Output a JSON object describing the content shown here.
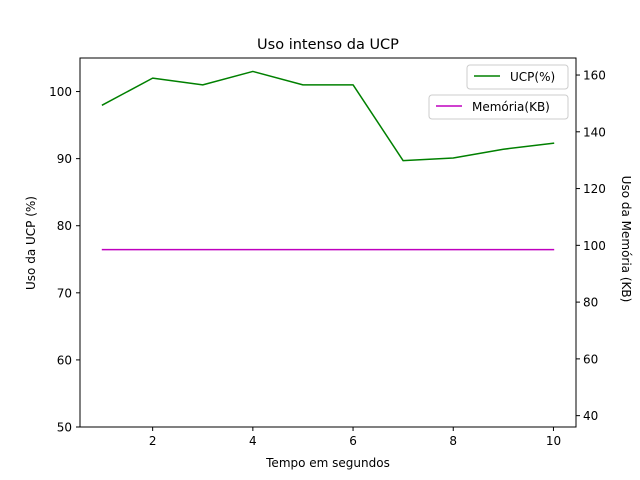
{
  "chart_data": {
    "type": "line",
    "title": "Uso intenso da UCP",
    "xlabel": "Tempo em segundos",
    "ylabel_left": "Uso da UCP (%)",
    "ylabel_right": "Uso da Memória (KB)",
    "xlim": [
      0.55,
      10.45
    ],
    "ylim_left": [
      50,
      105
    ],
    "ylim_right": [
      36,
      166
    ],
    "xticks": [
      2,
      4,
      6,
      8,
      10
    ],
    "yticks_left": [
      50,
      60,
      70,
      80,
      90,
      100
    ],
    "yticks_right": [
      40,
      60,
      80,
      100,
      120,
      140,
      160
    ],
    "x": [
      1,
      2,
      3,
      4,
      5,
      6,
      7,
      8,
      9,
      10
    ],
    "series": [
      {
        "name": "UCP(%)",
        "axis": "left",
        "color": "#008000",
        "values": [
          98.0,
          102.0,
          101.0,
          103.0,
          101.0,
          101.0,
          89.7,
          90.1,
          91.4,
          92.3
        ]
      },
      {
        "name": "Memória(KB)",
        "axis": "right",
        "color": "#bf00bf",
        "values": [
          98.5,
          98.5,
          98.5,
          98.5,
          98.5,
          98.5,
          98.5,
          98.5,
          98.5,
          98.5
        ]
      }
    ],
    "grid": false,
    "legend_placement": "top-right (separate legend per axis)"
  }
}
